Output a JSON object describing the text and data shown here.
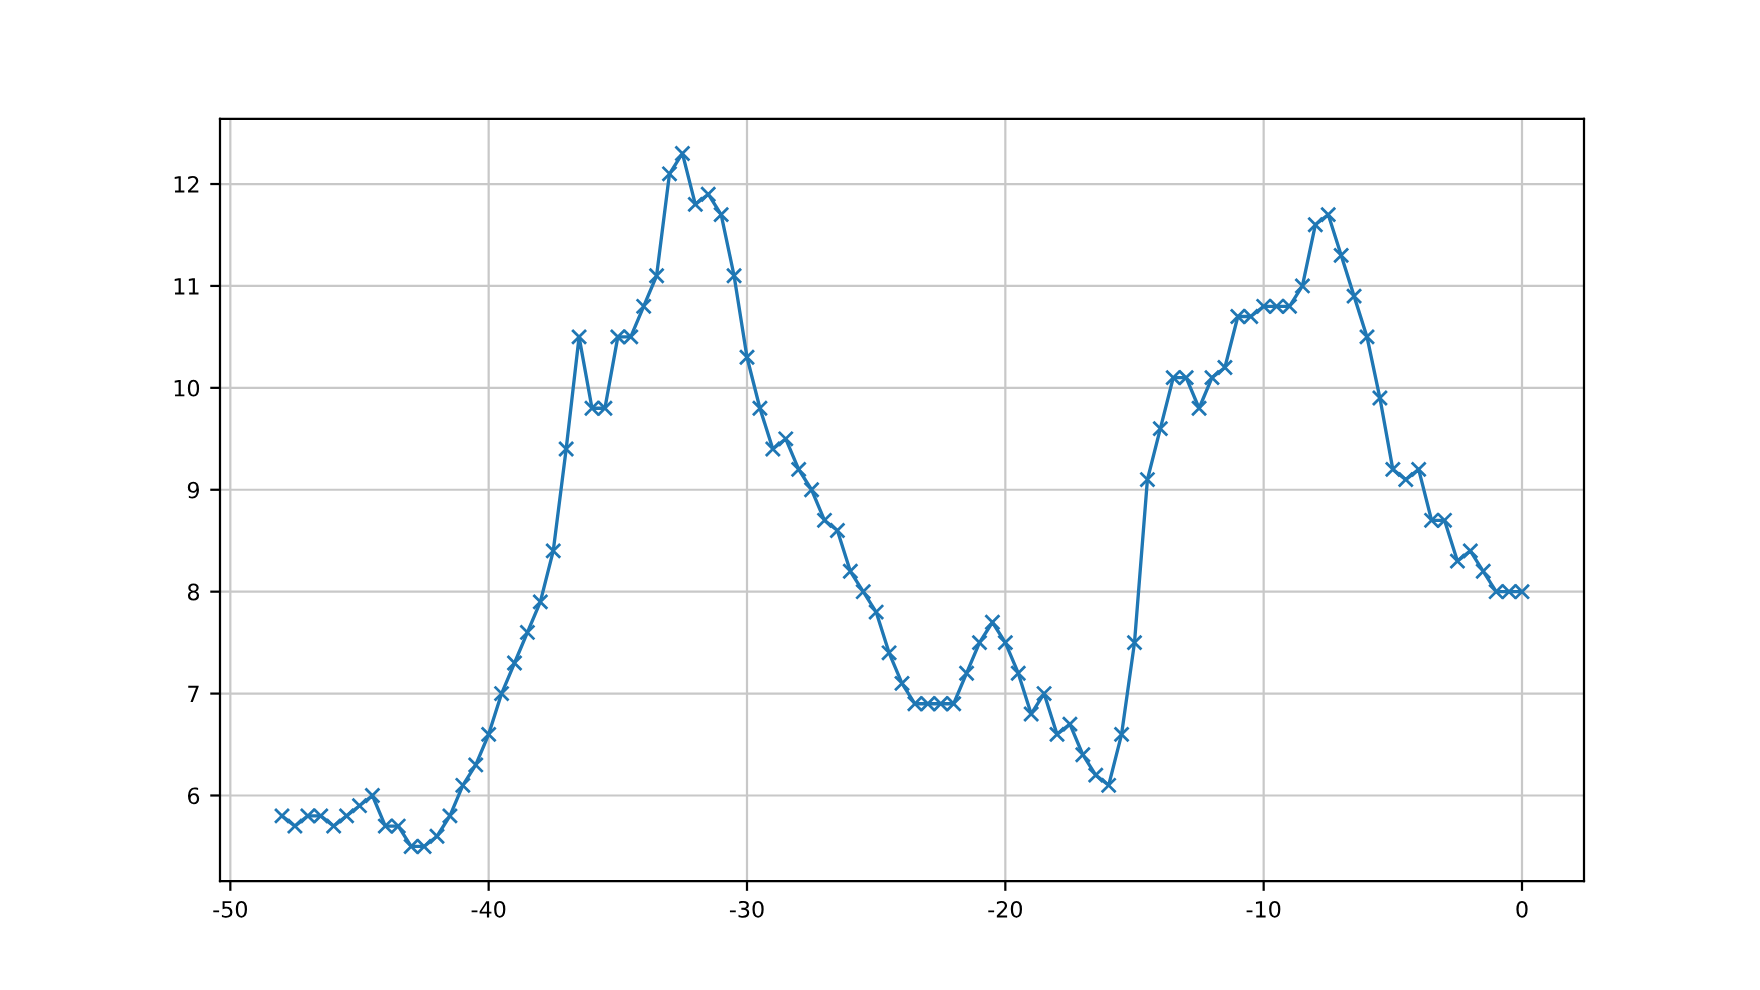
{
  "chart_data": {
    "type": "line",
    "x": [
      -48,
      -47.5,
      -47,
      -46.5,
      -46,
      -45.5,
      -45,
      -44.5,
      -44,
      -43.5,
      -43,
      -42.5,
      -42,
      -41.5,
      -41,
      -40.5,
      -40,
      -39.5,
      -39,
      -38.5,
      -38,
      -37.5,
      -37,
      -36.5,
      -36,
      -35.5,
      -35,
      -34.5,
      -34,
      -33.5,
      -33,
      -32.5,
      -32,
      -31.5,
      -31,
      -30.5,
      -30,
      -29.5,
      -29,
      -28.5,
      -28,
      -27.5,
      -27,
      -26.5,
      -26,
      -25.5,
      -25,
      -24.5,
      -24,
      -23.5,
      -23,
      -22.5,
      -22,
      -21.5,
      -21,
      -20.5,
      -20,
      -19.5,
      -19,
      -18.5,
      -18,
      -17.5,
      -17,
      -16.5,
      -16,
      -15.5,
      -15,
      -14.5,
      -14,
      -13.5,
      -13,
      -12.5,
      -12,
      -11.5,
      -11,
      -10.5,
      -10,
      -9.5,
      -9,
      -8.5,
      -8,
      -7.5,
      -7,
      -6.5,
      -6,
      -5.5,
      -5,
      -4.5,
      -4,
      -3.5,
      -3,
      -2.5,
      -2,
      -1.5,
      -1,
      -0.5,
      0
    ],
    "series": [
      {
        "color": "#1f77b4",
        "values": [
          5.8,
          5.7,
          5.8,
          5.8,
          5.7,
          5.8,
          5.9,
          6.0,
          5.7,
          5.7,
          5.5,
          5.5,
          5.6,
          5.8,
          6.1,
          6.3,
          6.6,
          7.0,
          7.3,
          7.6,
          7.9,
          8.4,
          9.4,
          10.5,
          9.8,
          9.8,
          10.5,
          10.5,
          10.8,
          11.1,
          12.1,
          12.3,
          11.8,
          11.9,
          11.7,
          11.1,
          10.3,
          9.8,
          9.4,
          9.5,
          9.2,
          9.0,
          8.7,
          8.6,
          8.2,
          8.0,
          7.8,
          7.4,
          7.1,
          6.9,
          6.9,
          6.9,
          6.9,
          7.2,
          7.5,
          7.7,
          7.5,
          7.2,
          6.8,
          7.0,
          6.6,
          6.7,
          6.4,
          6.2,
          6.1,
          6.6,
          7.5,
          9.1,
          9.6,
          10.1,
          10.1,
          9.8,
          10.1,
          10.2,
          10.7,
          10.7,
          10.8,
          10.8,
          10.8,
          11.0,
          11.6,
          11.7,
          11.3,
          10.9,
          10.5,
          9.9,
          9.2,
          9.1,
          9.2,
          8.7,
          8.7,
          8.3,
          8.4,
          8.2,
          8.0,
          8.0,
          8.0
        ]
      }
    ],
    "xlim": [
      -50.4,
      2.4
    ],
    "xticks": [
      -50,
      -40,
      -30,
      -20,
      -10,
      0
    ],
    "ylim": [
      5.16,
      12.64
    ],
    "yticks": [
      6,
      7,
      8,
      9,
      10,
      11,
      12
    ],
    "grid": true,
    "marker": "cross",
    "line_style": "solid"
  }
}
